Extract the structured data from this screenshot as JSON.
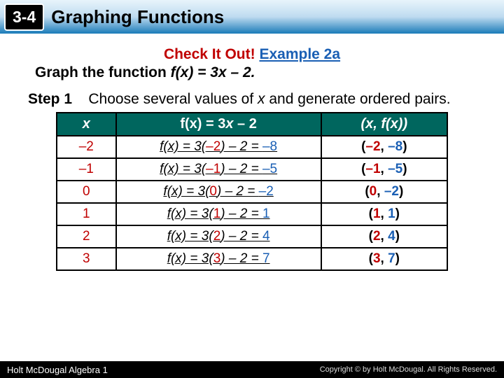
{
  "header": {
    "section": "3-4",
    "title": "Graphing Functions"
  },
  "check": {
    "label": "Check It Out!",
    "example": "Example 2a"
  },
  "prompt_pre": "Graph the function ",
  "prompt_fn": "f(x) = 3x – 2.",
  "step": {
    "label": "Step 1",
    "text1": "Choose several values of ",
    "xvar": "x",
    "text2": " and generate ordered pairs."
  },
  "table": {
    "h1": "x",
    "h2_pre": "f(x) = 3",
    "h2_x": "x",
    "h2_post": " – 2",
    "h3": "(x, f(x))",
    "rows": [
      {
        "x": "–2",
        "mid_pre": "f(x) = 3(",
        "xv": "–2",
        "mid_mid": ") – 2 = ",
        "res": "–8",
        "pair_pre": "(",
        "px": "–2",
        "sep": ", ",
        "py": "–8",
        "pair_post": ")"
      },
      {
        "x": "–1",
        "mid_pre": "f(x) = 3(",
        "xv": "–1",
        "mid_mid": ") – 2 = ",
        "res": "–5",
        "pair_pre": "(",
        "px": "–1",
        "sep": ", ",
        "py": "–5",
        "pair_post": ")"
      },
      {
        "x": "0",
        "mid_pre": "f(x) = 3(",
        "xv": "0",
        "mid_mid": ") – 2 = ",
        "res": "–2",
        "pair_pre": "(",
        "px": "0",
        "sep": ", ",
        "py": "–2",
        "pair_post": ")"
      },
      {
        "x": "1",
        "mid_pre": "f(x) = 3(",
        "xv": "1",
        "mid_mid": ") – 2 = ",
        "res": "1",
        "pair_pre": "(",
        "px": "1",
        "sep": ", ",
        "py": "1",
        "pair_post": ")"
      },
      {
        "x": "2",
        "mid_pre": "f(x) = 3(",
        "xv": "2",
        "mid_mid": ") – 2 = ",
        "res": "4",
        "pair_pre": "(",
        "px": "2",
        "sep": ", ",
        "py": "4",
        "pair_post": ")"
      },
      {
        "x": "3",
        "mid_pre": "f(x) = 3(",
        "xv": "3",
        "mid_mid": ") – 2 = ",
        "res": "7",
        "pair_pre": "(",
        "px": "3",
        "sep": ", ",
        "py": "7",
        "pair_post": ")"
      }
    ]
  },
  "footer": {
    "left": "Holt McDougal Algebra 1",
    "right": "Copyright © by Holt McDougal. All Rights Reserved."
  },
  "colors": {
    "header_grad_top": "#e8f4fb",
    "header_grad_bottom": "#1a7bb8",
    "table_header_bg": "#00665e",
    "red": "#c00000",
    "blue": "#1a5fb4"
  }
}
